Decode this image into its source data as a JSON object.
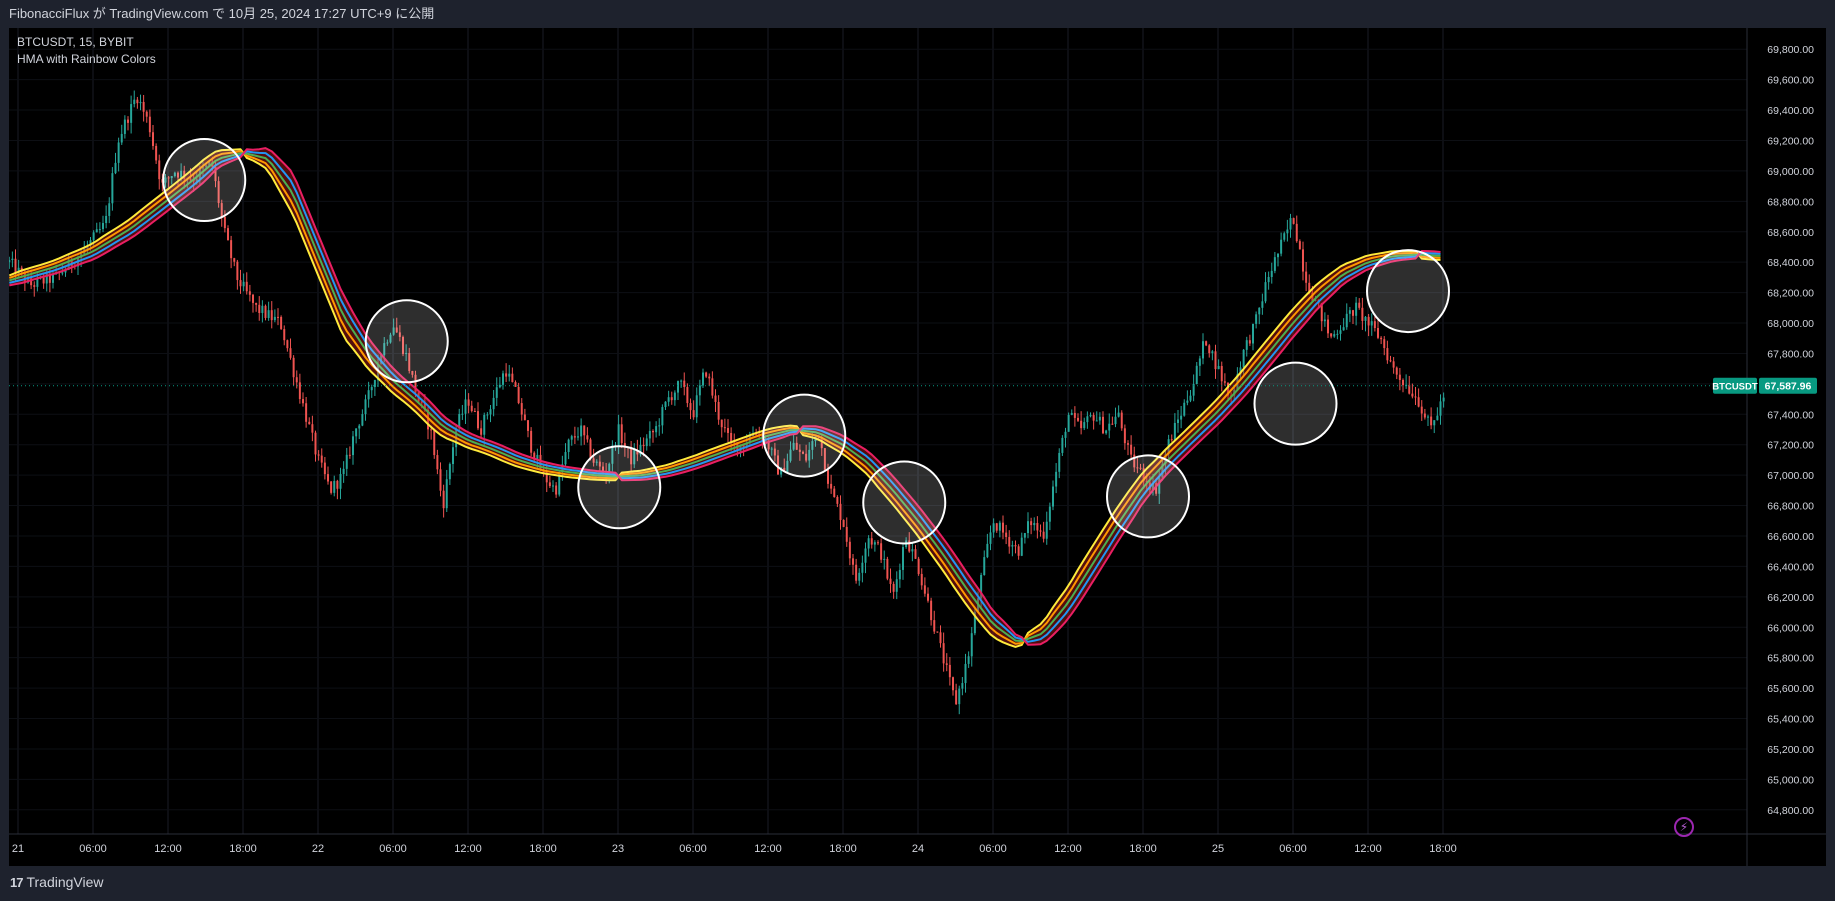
{
  "header": {
    "published": "FibonacciFlux が TradingView.com で 10月 25, 2024 17:27 UTC+9 に公開"
  },
  "legend": {
    "symbol": "BTCUSDT, 15, BYBIT",
    "indicator": "HMA with Rainbow Colors"
  },
  "price_tag": {
    "symbol": "BTCUSDT",
    "value": "67,587.96",
    "color": "#089981"
  },
  "footer": {
    "brand": "TradingView"
  },
  "colors": {
    "bull": "#26a69a",
    "bear": "#ef5350",
    "background": "#000000",
    "grid": "#1a1d26"
  },
  "chart_data": {
    "type": "candlestick",
    "symbol": "BTCUSDT",
    "interval": "15",
    "exchange": "BYBIT",
    "ylim": [
      64700,
      69900
    ],
    "price_ticks": [
      64800,
      65000,
      65200,
      65400,
      65600,
      65800,
      66000,
      66200,
      66400,
      66600,
      66800,
      67000,
      67200,
      67400,
      67600,
      67800,
      68000,
      68200,
      68400,
      68600,
      68800,
      69000,
      69200,
      69400,
      69600,
      69800
    ],
    "price_tick_labels": [
      "64,800.00",
      "65,000.00",
      "65,200.00",
      "65,400.00",
      "65,600.00",
      "65,800.00",
      "66,000.00",
      "66,200.00",
      "66,400.00",
      "66,600.00",
      "66,800.00",
      "67,000.00",
      "67,200.00",
      "67,400.00",
      "67,600.00",
      "67,800.00",
      "68,000.00",
      "68,200.00",
      "68,400.00",
      "68,600.00",
      "68,800.00",
      "69,000.00",
      "69,200.00",
      "69,400.00",
      "69,600.00",
      "69,800.00"
    ],
    "time_ticks": [
      {
        "t": 0,
        "label": "21"
      },
      {
        "t": 6,
        "label": "06:00"
      },
      {
        "t": 12,
        "label": "12:00"
      },
      {
        "t": 18,
        "label": "18:00"
      },
      {
        "t": 24,
        "label": "22"
      },
      {
        "t": 30,
        "label": "06:00"
      },
      {
        "t": 36,
        "label": "12:00"
      },
      {
        "t": 42,
        "label": "18:00"
      },
      {
        "t": 48,
        "label": "23"
      },
      {
        "t": 54,
        "label": "06:00"
      },
      {
        "t": 60,
        "label": "12:00"
      },
      {
        "t": 66,
        "label": "18:00"
      },
      {
        "t": 72,
        "label": "24"
      },
      {
        "t": 78,
        "label": "06:00"
      },
      {
        "t": 84,
        "label": "12:00"
      },
      {
        "t": 90,
        "label": "18:00"
      },
      {
        "t": 96,
        "label": "25"
      },
      {
        "t": 102,
        "label": "06:00"
      },
      {
        "t": 108,
        "label": "12:00"
      },
      {
        "t": 114,
        "label": "18:00"
      }
    ],
    "last_price": 67587.96,
    "price_path": [
      [
        -0.7,
        68400
      ],
      [
        1,
        68250
      ],
      [
        3,
        68300
      ],
      [
        5,
        68450
      ],
      [
        7,
        68650
      ],
      [
        8,
        69200
      ],
      [
        9.5,
        69500
      ],
      [
        10.5,
        69300
      ],
      [
        11.5,
        68900
      ],
      [
        12.5,
        69000
      ],
      [
        14,
        68950
      ],
      [
        15.5,
        69050
      ],
      [
        16.5,
        68600
      ],
      [
        17.5,
        68300
      ],
      [
        19,
        68100
      ],
      [
        21,
        68000
      ],
      [
        23,
        67400
      ],
      [
        24,
        67100
      ],
      [
        25,
        66900
      ],
      [
        26,
        67000
      ],
      [
        27,
        67300
      ],
      [
        28,
        67500
      ],
      [
        29,
        67800
      ],
      [
        30,
        68000
      ],
      [
        31,
        67800
      ],
      [
        32,
        67500
      ],
      [
        33,
        67300
      ],
      [
        34,
        66800
      ],
      [
        35,
        67300
      ],
      [
        36,
        67500
      ],
      [
        37,
        67300
      ],
      [
        38,
        67500
      ],
      [
        39,
        67700
      ],
      [
        40,
        67500
      ],
      [
        41,
        67200
      ],
      [
        42,
        67000
      ],
      [
        43,
        66900
      ],
      [
        44,
        67200
      ],
      [
        45,
        67300
      ],
      [
        46,
        67100
      ],
      [
        47,
        67000
      ],
      [
        48,
        67300
      ],
      [
        49,
        67100
      ],
      [
        50,
        67200
      ],
      [
        51,
        67300
      ],
      [
        52,
        67500
      ],
      [
        53,
        67600
      ],
      [
        54,
        67400
      ],
      [
        55,
        67700
      ],
      [
        56,
        67400
      ],
      [
        57,
        67200
      ],
      [
        58,
        67200
      ],
      [
        59,
        67300
      ],
      [
        60,
        67200
      ],
      [
        61,
        67000
      ],
      [
        62,
        67200
      ],
      [
        63,
        67100
      ],
      [
        64,
        67300
      ],
      [
        65,
        66900
      ],
      [
        66,
        66700
      ],
      [
        67,
        66300
      ],
      [
        68,
        66600
      ],
      [
        69,
        66500
      ],
      [
        70,
        66200
      ],
      [
        71,
        66600
      ],
      [
        72,
        66400
      ],
      [
        73,
        66100
      ],
      [
        74,
        65800
      ],
      [
        75,
        65500
      ],
      [
        76,
        65800
      ],
      [
        77,
        66300
      ],
      [
        78,
        66700
      ],
      [
        79,
        66600
      ],
      [
        80,
        66500
      ],
      [
        81,
        66700
      ],
      [
        82,
        66600
      ],
      [
        83,
        67000
      ],
      [
        84,
        67400
      ],
      [
        85,
        67300
      ],
      [
        86,
        67400
      ],
      [
        87,
        67300
      ],
      [
        88,
        67400
      ],
      [
        89,
        67100
      ],
      [
        90,
        67000
      ],
      [
        91,
        66900
      ],
      [
        92,
        67200
      ],
      [
        93,
        67400
      ],
      [
        94,
        67600
      ],
      [
        95,
        67900
      ],
      [
        96,
        67700
      ],
      [
        97,
        67500
      ],
      [
        98,
        67800
      ],
      [
        99,
        68000
      ],
      [
        100,
        68300
      ],
      [
        101,
        68500
      ],
      [
        102,
        68700
      ],
      [
        103,
        68300
      ],
      [
        104,
        68100
      ],
      [
        105,
        67900
      ],
      [
        106,
        68000
      ],
      [
        107,
        68100
      ],
      [
        108,
        68000
      ],
      [
        109,
        67900
      ],
      [
        110,
        67700
      ],
      [
        111,
        67600
      ],
      [
        112,
        67500
      ],
      [
        113,
        67300
      ],
      [
        114.2,
        67550
      ]
    ],
    "hma_center": [
      [
        -0.7,
        68280
      ],
      [
        3,
        68370
      ],
      [
        6,
        68470
      ],
      [
        9,
        68620
      ],
      [
        12,
        68810
      ],
      [
        14,
        68940
      ],
      [
        16,
        69080
      ],
      [
        18,
        69120
      ],
      [
        20,
        69080
      ],
      [
        22,
        68850
      ],
      [
        24,
        68450
      ],
      [
        26,
        68050
      ],
      [
        28,
        67800
      ],
      [
        30,
        67620
      ],
      [
        32,
        67480
      ],
      [
        34,
        67320
      ],
      [
        36,
        67230
      ],
      [
        38,
        67170
      ],
      [
        40,
        67100
      ],
      [
        42,
        67050
      ],
      [
        44,
        67020
      ],
      [
        46,
        67000
      ],
      [
        48,
        66990
      ],
      [
        50,
        67000
      ],
      [
        52,
        67030
      ],
      [
        54,
        67080
      ],
      [
        56,
        67140
      ],
      [
        58,
        67200
      ],
      [
        60,
        67260
      ],
      [
        62,
        67300
      ],
      [
        64,
        67280
      ],
      [
        66,
        67200
      ],
      [
        68,
        67080
      ],
      [
        70,
        66900
      ],
      [
        72,
        66700
      ],
      [
        74,
        66480
      ],
      [
        76,
        66240
      ],
      [
        78,
        66020
      ],
      [
        80,
        65900
      ],
      [
        82,
        65960
      ],
      [
        84,
        66160
      ],
      [
        86,
        66420
      ],
      [
        88,
        66680
      ],
      [
        90,
        66920
      ],
      [
        92,
        67100
      ],
      [
        94,
        67260
      ],
      [
        96,
        67420
      ],
      [
        98,
        67600
      ],
      [
        100,
        67800
      ],
      [
        102,
        68000
      ],
      [
        104,
        68180
      ],
      [
        106,
        68320
      ],
      [
        108,
        68400
      ],
      [
        110,
        68440
      ],
      [
        112,
        68450
      ],
      [
        114,
        68440
      ]
    ],
    "hma_bands": [
      {
        "offset": -2,
        "color": "#ffeb3b"
      },
      {
        "offset": -1,
        "color": "#ff9800"
      },
      {
        "offset": 0,
        "color": "#4caf50"
      },
      {
        "offset": 1,
        "color": "#2196f3"
      },
      {
        "offset": 2,
        "color": "#e91e63"
      }
    ],
    "annotations": [
      {
        "type": "circle",
        "t": 14.9,
        "price": 68940
      },
      {
        "type": "circle",
        "t": 31.1,
        "price": 67880
      },
      {
        "type": "circle",
        "t": 48.1,
        "price": 66920
      },
      {
        "type": "circle",
        "t": 62.9,
        "price": 67260
      },
      {
        "type": "circle",
        "t": 70.9,
        "price": 66820
      },
      {
        "type": "circle",
        "t": 90.4,
        "price": 66860
      },
      {
        "type": "circle",
        "t": 102.2,
        "price": 67470
      },
      {
        "type": "circle",
        "t": 111.2,
        "price": 68210
      }
    ]
  }
}
